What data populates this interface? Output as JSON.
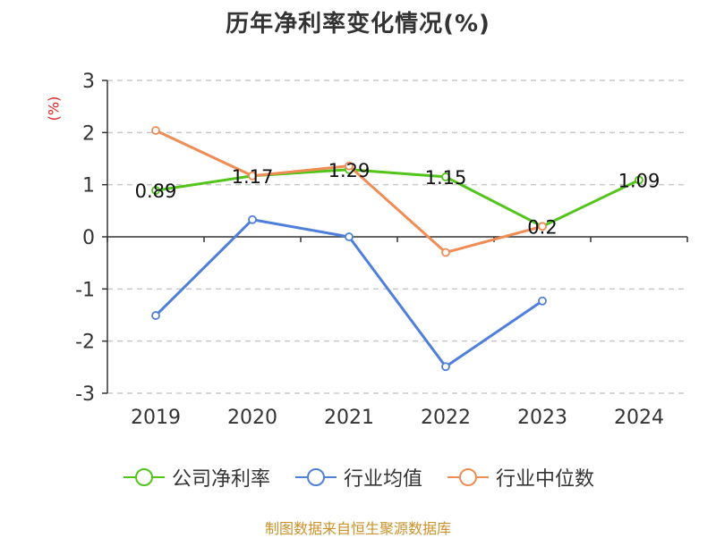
{
  "chart_data": {
    "type": "line",
    "title": "历年净利率变化情况(%)",
    "ylabel": "(%)",
    "categories": [
      "2019",
      "2020",
      "2021",
      "2022",
      "2023",
      "2024"
    ],
    "ylim": [
      -3,
      3
    ],
    "yticks": [
      "3",
      "2",
      "1",
      "0",
      "-1",
      "-2",
      "-3"
    ],
    "grid": true,
    "legend_position": "bottom",
    "series": [
      {
        "name": "公司净利率",
        "color": "#52c41a",
        "values": [
          0.89,
          1.17,
          1.29,
          1.15,
          0.2,
          1.09
        ],
        "data_labels": [
          "0.89",
          "1.17",
          "1.29",
          "1.15",
          "0.2",
          "1.09"
        ]
      },
      {
        "name": "行业均值",
        "color": "#4f7fdb",
        "values": [
          -1.51,
          0.33,
          0.0,
          -2.49,
          -1.23,
          null
        ]
      },
      {
        "name": "行业中位数",
        "color": "#f08c55",
        "values": [
          2.04,
          1.17,
          1.36,
          -0.3,
          0.2,
          null
        ]
      }
    ]
  },
  "source": "制图数据来自恒生聚源数据库"
}
